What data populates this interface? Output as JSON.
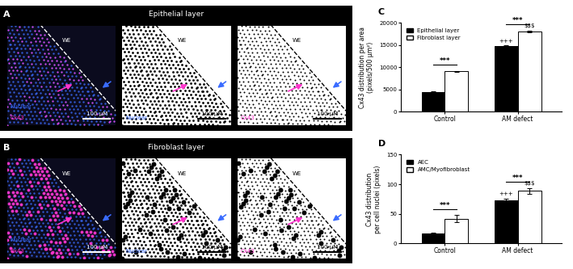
{
  "image_panels": [
    {
      "letter": "A",
      "title": "Epithelial layer",
      "boundary_label": "WE",
      "channels": [
        "Nuclear",
        "Cx43"
      ],
      "scale_bar": "100 μM"
    },
    {
      "letter": "B",
      "title": "Fibroblast layer",
      "boundary_label": "WE",
      "channels": [
        "Nuclear",
        "Cx43"
      ],
      "scale_bar": "100 μM"
    }
  ],
  "chart_data": [
    {
      "type": "bar",
      "panel": "C",
      "y_label": "Cx43 distribution per area\n(pixels/500 μm²)",
      "categories": [
        "Control",
        "AM defect"
      ],
      "series": [
        {
          "name": "Epithelial layer",
          "color": "#000000",
          "values": [
            4400,
            14700
          ],
          "errors": [
            100,
            300
          ]
        },
        {
          "name": "Fibroblast layer",
          "color": "#ffffff",
          "values": [
            9100,
            18100
          ],
          "errors": [
            100,
            200
          ]
        }
      ],
      "ylim": [
        0,
        20000
      ],
      "yticks": [
        0,
        5000,
        10000,
        15000,
        20000
      ],
      "legend": "upper left",
      "annotations": [
        {
          "text": "***",
          "category": "Control"
        },
        {
          "text": "***",
          "category": "AM defect"
        },
        {
          "text": "+++",
          "category": "AM defect",
          "series": "Epithelial layer"
        },
        {
          "text": "$$$",
          "category": "AM defect",
          "series": "Fibroblast layer"
        }
      ]
    },
    {
      "type": "bar",
      "panel": "D",
      "y_label": "Cx43 distribution\nper cell nuclei (pixels)",
      "categories": [
        "Control",
        "AM defect"
      ],
      "series": [
        {
          "name": "AEC",
          "color": "#000000",
          "values": [
            17,
            73
          ],
          "errors": [
            1,
            3
          ]
        },
        {
          "name": "AMC/Myofibroblast",
          "color": "#ffffff",
          "values": [
            42,
            89
          ],
          "errors": [
            6,
            5
          ]
        }
      ],
      "ylim": [
        0,
        150
      ],
      "yticks": [
        0,
        50,
        100,
        150
      ],
      "legend": "upper left",
      "annotations": [
        {
          "text": "***",
          "category": "Control"
        },
        {
          "text": "***",
          "category": "AM defect"
        },
        {
          "text": "+++",
          "category": "AM defect",
          "series": "AEC"
        },
        {
          "text": "$$$",
          "category": "AM defect",
          "series": "AMC/Myofibroblast"
        }
      ]
    }
  ]
}
